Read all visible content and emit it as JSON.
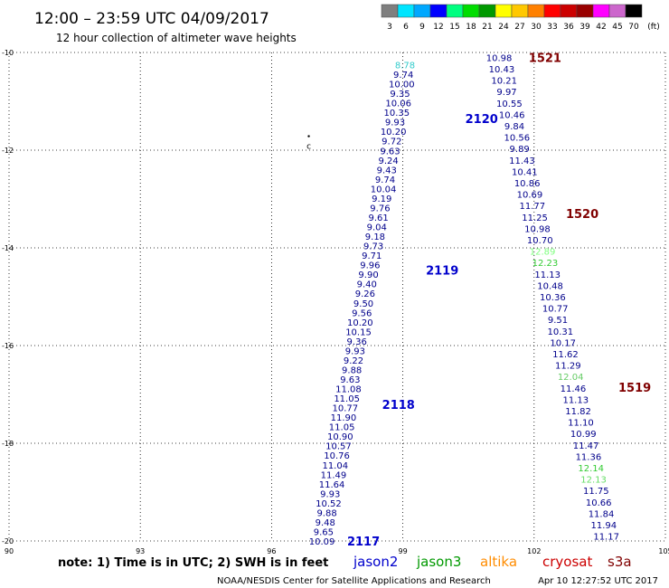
{
  "header": {
    "title": "12:00 – 23:59 UTC 04/09/2017",
    "subtitle": "12 hour collection of altimeter wave heights"
  },
  "legend_scale": {
    "labels": [
      "3",
      "6",
      "9",
      "12",
      "15",
      "18",
      "21",
      "24",
      "27",
      "30",
      "33",
      "36",
      "39",
      "42",
      "45",
      "70",
      "(ft)"
    ],
    "colors": [
      "#7f7f7f",
      "#00e5ff",
      "#00a8ff",
      "#0000ff",
      "#00ff80",
      "#00dd00",
      "#009900",
      "#ffff00",
      "#ffc800",
      "#ff8000",
      "#ff0000",
      "#cc0000",
      "#990000",
      "#ff00ff",
      "#cc66cc",
      "#000000"
    ]
  },
  "footer": {
    "note": "note:  1) Time is in UTC;  2) SWH is in feet",
    "credit": "NOAA/NESDIS Center for Satellite Applications and Research",
    "timestamp": "Apr 10 12:27:52 UTC 2017",
    "satellites": [
      {
        "name": "jason2",
        "color": "#0000cc"
      },
      {
        "name": "jason3",
        "color": "#009900"
      },
      {
        "name": "altika",
        "color": "#ff8c00"
      },
      {
        "name": "cryosat",
        "color": "#cc0000"
      },
      {
        "name": "s3a",
        "color": "#800000"
      }
    ]
  },
  "chart_data": {
    "type": "scatter",
    "title": "12:00 – 23:59 UTC 04/09/2017",
    "xlim": [
      90,
      105
    ],
    "ylim": [
      -20,
      -10
    ],
    "x_ticks": [
      "90",
      "93",
      "96",
      "99",
      "102",
      "105"
    ],
    "y_ticks": [
      "-10",
      "-12",
      "-14",
      "-16",
      "-18",
      "-20"
    ],
    "grid": true,
    "tracks": [
      {
        "color": "#00008b",
        "x_start": 97.15,
        "x_end": 99.05,
        "y_start": -20.0,
        "y_end": -10.25,
        "values": [
          "10.09",
          "9.65",
          "9.48",
          "9.88",
          "10.52",
          "9.93",
          "11.64",
          "11.49",
          "11.04",
          "10.76",
          "10.57",
          "10.90",
          "11.05",
          "11.90",
          "10.77",
          "11.05",
          "11.08",
          "9.63",
          "9.88",
          "9.22",
          "9.93",
          "9.36",
          "10.15",
          "10.20",
          "9.56",
          "9.50",
          "9.26",
          "9.40",
          "9.90",
          "9.96",
          "9.71",
          "9.73",
          "9.18",
          "9.04",
          "9.61",
          "9.76",
          "9.19",
          "10.04",
          "9.74",
          "9.43",
          "9.24",
          "9.63",
          "9.72",
          "10.20",
          "9.93",
          "10.35",
          "10.06",
          "9.35",
          "10.00",
          "9.74",
          "8.78"
        ],
        "value_colors": {
          "50": "#33cccc"
        },
        "labels": [
          {
            "text": "2117",
            "x": 98.1,
            "y": -20.0
          },
          {
            "text": "2118",
            "x": 98.9,
            "y": -17.2
          },
          {
            "text": "2119",
            "x": 99.9,
            "y": -14.45
          },
          {
            "text": "2120",
            "x": 100.8,
            "y": -11.35
          }
        ]
      },
      {
        "color": "#00008b",
        "x_start": 101.2,
        "x_end": 103.65,
        "y_start": -10.1,
        "y_end": -19.9,
        "values": [
          "10.98",
          "10.43",
          "10.21",
          "9.97",
          "10.55",
          "10.46",
          "9.84",
          "10.56",
          "9.89",
          "11.43",
          "10.41",
          "10.86",
          "10.69",
          "11.77",
          "11.25",
          "10.98",
          "10.70",
          "12.89",
          "12.23",
          "11.13",
          "10.48",
          "10.36",
          "10.77",
          "9.51",
          "10.31",
          "10.17",
          "11.62",
          "11.29",
          "12.04",
          "11.46",
          "11.13",
          "11.82",
          "11.10",
          "10.99",
          "11.47",
          "11.36",
          "12.14",
          "12.13",
          "11.75",
          "10.66",
          "11.84",
          "11.94",
          "11.17"
        ],
        "value_colors": {
          "17": "#80ff80",
          "18": "#33cc33",
          "28": "#66cc66",
          "36": "#33cc33",
          "37": "#66dd66"
        },
        "labels": [
          {
            "text": "1521",
            "x": 102.25,
            "y": -10.1
          },
          {
            "text": "1520",
            "x": 103.1,
            "y": -13.3
          },
          {
            "text": "1519",
            "x": 104.3,
            "y": -16.85
          }
        ]
      }
    ],
    "marker": {
      "x": 96.85,
      "y": -11.9,
      "text": "c"
    }
  }
}
